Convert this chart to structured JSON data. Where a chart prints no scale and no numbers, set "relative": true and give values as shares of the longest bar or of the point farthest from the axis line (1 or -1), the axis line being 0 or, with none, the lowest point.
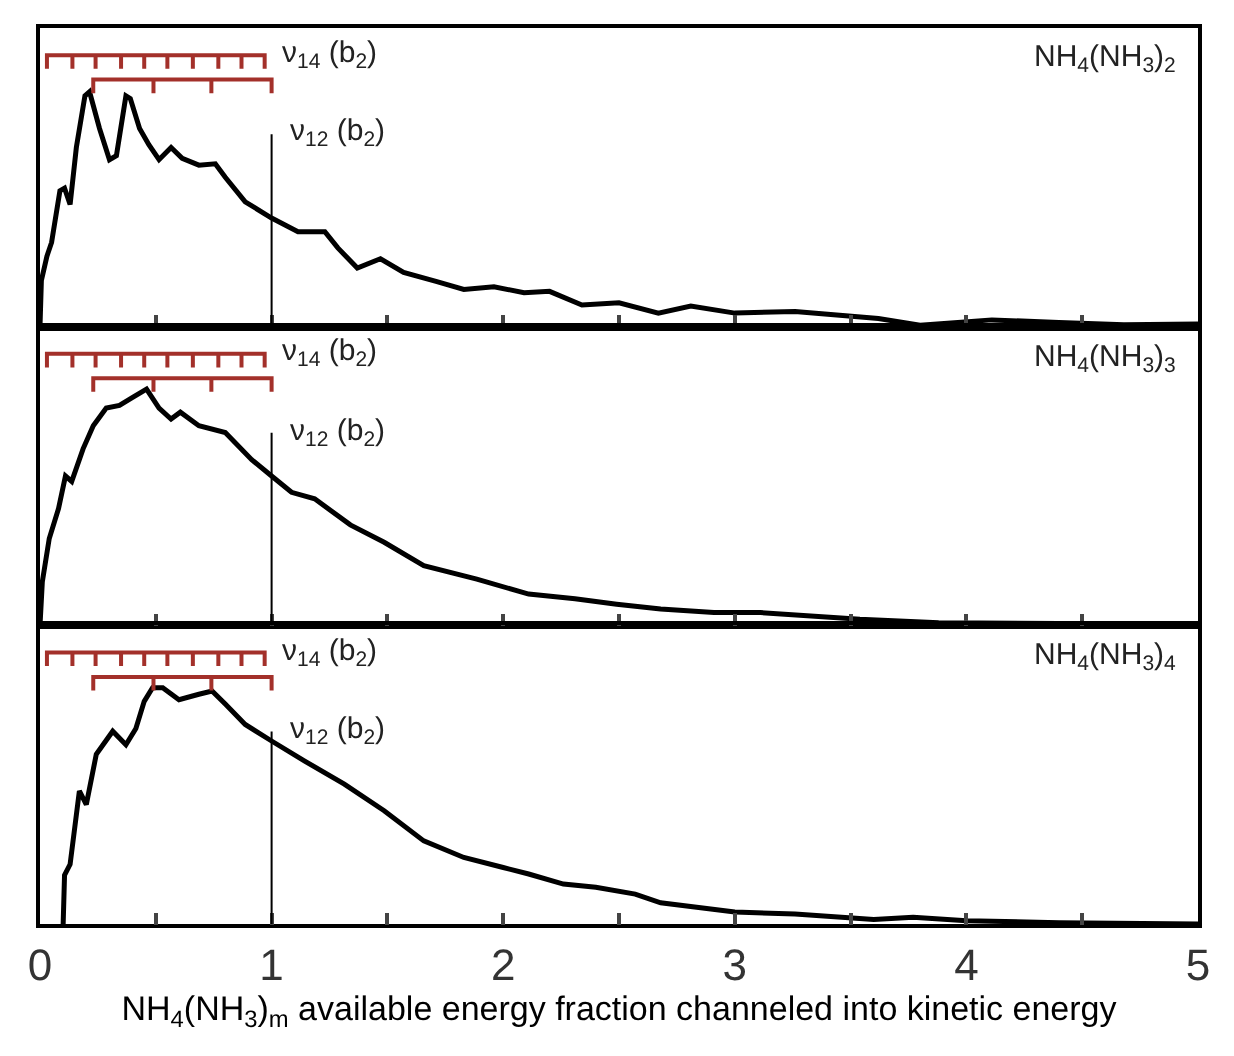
{
  "chart_data": [
    {
      "type": "line",
      "relative": true,
      "xlim": [
        0,
        5
      ],
      "xticks": [
        0,
        {
          "value": 0.5,
          "label": null
        },
        1,
        {
          "value": 1.5,
          "label": null
        },
        2,
        {
          "value": 2.5,
          "label": null
        },
        3,
        {
          "value": 3.5,
          "label": null
        },
        4,
        {
          "value": 4.5,
          "label": null
        },
        5
      ],
      "tick_labels": false,
      "grid": false,
      "marker": "none",
      "line_style": "solid",
      "series": [
        {
          "color": "#000000",
          "x": [
            0,
            0.006,
            0.03,
            0.05,
            0.086,
            0.106,
            0.13,
            0.157,
            0.194,
            0.214,
            0.257,
            0.3,
            0.33,
            0.371,
            0.39,
            0.43,
            0.47,
            0.514,
            0.566,
            0.614,
            0.686,
            0.757,
            0.8,
            0.886,
            1.0,
            1.114,
            1.23,
            1.286,
            1.37,
            1.47,
            1.57,
            1.71,
            1.83,
            1.96,
            2.09,
            2.2,
            2.34,
            2.5,
            2.67,
            2.81,
            3.0,
            3.26,
            3.62,
            3.8,
            4.11,
            4.4,
            4.68,
            5.0
          ],
          "values": [
            0,
            0.17,
            0.26,
            0.31,
            0.5,
            0.51,
            0.45,
            0.66,
            0.85,
            0.865,
            0.73,
            0.615,
            0.63,
            0.85,
            0.84,
            0.73,
            0.67,
            0.615,
            0.66,
            0.62,
            0.595,
            0.6,
            0.55,
            0.46,
            0.4,
            0.35,
            0.35,
            0.29,
            0.216,
            0.25,
            0.2,
            0.167,
            0.137,
            0.147,
            0.125,
            0.13,
            0.08,
            0.088,
            0.05,
            0.076,
            0.05,
            0.056,
            0.03,
            0.005,
            0.025,
            0.015,
            0.007,
            0.01
          ]
        },
        {
          "color": "#a3302a",
          "x": [
            0.03,
            0.03,
            0.14,
            0.14,
            0.14,
            0.24,
            0.24,
            0.24,
            0.35,
            0.35,
            0.35,
            0.45,
            0.45,
            0.45,
            0.55,
            0.55,
            0.55,
            0.66,
            0.66,
            0.66,
            0.77,
            0.77,
            0.77,
            0.87,
            0.87,
            0.87,
            0.97,
            0.97
          ],
          "values": [
            0.95,
            1,
            1,
            0.95,
            1,
            1,
            0.95,
            1,
            1,
            0.95,
            1,
            1,
            0.95,
            1,
            1,
            0.95,
            1,
            1,
            0.95,
            1,
            1,
            0.95,
            1,
            1,
            0.95,
            1,
            1,
            0.95
          ]
        },
        {
          "color": "#a3302a",
          "x": [
            0.23,
            0.23,
            0.49,
            0.49,
            0.49,
            0.74,
            0.74,
            0.74,
            1.0,
            1.0
          ],
          "values": [
            0.86,
            0.91,
            0.91,
            0.86,
            0.91,
            0.91,
            0.86,
            0.91,
            0.91,
            0.86
          ]
        }
      ],
      "ref_lines": [
        {
          "axis": "x",
          "value": 1
        }
      ],
      "annotations": [
        "NH$_{4}$(NH$_{3}$)$_{2}$",
        "ν$_{14}$ (b$_{2}$)",
        "ν$_{12}$ (b$_{2}$)"
      ]
    },
    {
      "type": "line",
      "relative": true,
      "xlim": [
        0,
        5
      ],
      "xticks": [
        0,
        {
          "value": 0.5,
          "label": null
        },
        1,
        {
          "value": 1.5,
          "label": null
        },
        2,
        {
          "value": 2.5,
          "label": null
        },
        3,
        {
          "value": 3.5,
          "label": null
        },
        4,
        {
          "value": 4.5,
          "label": null
        },
        5
      ],
      "tick_labels": false,
      "grid": false,
      "marker": "none",
      "line_style": "solid",
      "series": [
        {
          "color": "#000000",
          "x": [
            0,
            0.01,
            0.04,
            0.08,
            0.11,
            0.137,
            0.186,
            0.23,
            0.286,
            0.343,
            0.4,
            0.46,
            0.514,
            0.566,
            0.606,
            0.686,
            0.8,
            0.914,
            1.0,
            1.086,
            1.186,
            1.34,
            1.486,
            1.657,
            1.886,
            2.11,
            2.31,
            2.49,
            2.68,
            2.91,
            3.11,
            3.54,
            3.88,
            4.4,
            5.0
          ],
          "values": [
            0,
            0.16,
            0.32,
            0.43,
            0.55,
            0.53,
            0.65,
            0.735,
            0.8,
            0.81,
            0.84,
            0.87,
            0.8,
            0.76,
            0.785,
            0.735,
            0.71,
            0.61,
            0.55,
            0.49,
            0.466,
            0.37,
            0.306,
            0.22,
            0.17,
            0.115,
            0.098,
            0.078,
            0.06,
            0.047,
            0.047,
            0.022,
            0.01,
            0.007,
            0.002
          ]
        },
        {
          "color": "#a3302a",
          "x": [
            0.03,
            0.03,
            0.14,
            0.14,
            0.14,
            0.24,
            0.24,
            0.24,
            0.35,
            0.35,
            0.35,
            0.45,
            0.45,
            0.45,
            0.55,
            0.55,
            0.55,
            0.66,
            0.66,
            0.66,
            0.77,
            0.77,
            0.77,
            0.87,
            0.87,
            0.87,
            0.97,
            0.97
          ],
          "values": [
            0.95,
            1,
            1,
            0.95,
            1,
            1,
            0.95,
            1,
            1,
            0.95,
            1,
            1,
            0.95,
            1,
            1,
            0.95,
            1,
            1,
            0.95,
            1,
            1,
            0.95,
            1,
            1,
            0.95,
            1,
            1,
            0.95
          ]
        },
        {
          "color": "#a3302a",
          "x": [
            0.23,
            0.23,
            0.49,
            0.49,
            0.49,
            0.74,
            0.74,
            0.74,
            1.0,
            1.0
          ],
          "values": [
            0.86,
            0.91,
            0.91,
            0.86,
            0.91,
            0.91,
            0.86,
            0.91,
            0.91,
            0.86
          ]
        }
      ],
      "ref_lines": [
        {
          "axis": "x",
          "value": 1
        }
      ],
      "annotations": [
        "NH$_{4}$(NH$_{3}$)$_{3}$",
        "ν$_{14}$ (b$_{2}$)",
        "ν$_{12}$ (b$_{2}$)"
      ]
    },
    {
      "type": "line",
      "relative": true,
      "xlim": [
        0,
        5
      ],
      "xticks": [
        0,
        {
          "value": 0.5,
          "label": null
        },
        1,
        {
          "value": 1.5,
          "label": null
        },
        2,
        {
          "value": 2.5,
          "label": null
        },
        3,
        {
          "value": 3.5,
          "label": null
        },
        4,
        {
          "value": 4.5,
          "label": null
        },
        5
      ],
      "tick_labels": "x",
      "grid": false,
      "marker": "none",
      "line_style": "solid",
      "xlabel": "NH$_{4}$(NH$_{3}$)$_{m}$ available energy fraction channeled into kinetic energy",
      "series": [
        {
          "color": "#000000",
          "x": [
            0.1,
            0.106,
            0.13,
            0.17,
            0.2,
            0.243,
            0.314,
            0.371,
            0.414,
            0.45,
            0.486,
            0.53,
            0.6,
            0.686,
            0.743,
            0.8,
            0.886,
            1.0,
            1.143,
            1.314,
            1.486,
            1.657,
            1.83,
            2.0,
            2.11,
            2.26,
            2.4,
            2.57,
            2.68,
            3.0,
            3.26,
            3.6,
            3.77,
            4.0,
            4.4,
            5.0
          ],
          "values": [
            0,
            0.18,
            0.22,
            0.49,
            0.44,
            0.625,
            0.71,
            0.66,
            0.72,
            0.82,
            0.87,
            0.87,
            0.826,
            0.846,
            0.858,
            0.81,
            0.735,
            0.674,
            0.6,
            0.515,
            0.417,
            0.306,
            0.245,
            0.208,
            0.184,
            0.147,
            0.135,
            0.11,
            0.078,
            0.044,
            0.037,
            0.017,
            0.025,
            0.012,
            0.005,
            0
          ]
        },
        {
          "color": "#a3302a",
          "x": [
            0.03,
            0.03,
            0.14,
            0.14,
            0.14,
            0.24,
            0.24,
            0.24,
            0.35,
            0.35,
            0.35,
            0.45,
            0.45,
            0.45,
            0.55,
            0.55,
            0.55,
            0.66,
            0.66,
            0.66,
            0.77,
            0.77,
            0.77,
            0.87,
            0.87,
            0.87,
            0.97,
            0.97
          ],
          "values": [
            0.95,
            1,
            1,
            0.95,
            1,
            1,
            0.95,
            1,
            1,
            0.95,
            1,
            1,
            0.95,
            1,
            1,
            0.95,
            1,
            1,
            0.95,
            1,
            1,
            0.95,
            1,
            1,
            0.95,
            1,
            1,
            0.95
          ]
        },
        {
          "color": "#a3302a",
          "x": [
            0.23,
            0.23,
            0.49,
            0.49,
            0.49,
            0.74,
            0.74,
            0.74,
            1.0,
            1.0
          ],
          "values": [
            0.86,
            0.91,
            0.91,
            0.86,
            0.91,
            0.91,
            0.86,
            0.91,
            0.91,
            0.86
          ]
        }
      ],
      "ref_lines": [
        {
          "axis": "x",
          "value": 1
        }
      ],
      "annotations": [
        "NH$_{4}$(NH$_{3}$)$_{4}$",
        "ν$_{14}$ (b$_{2}$)",
        "ν$_{12}$ (b$_{2}$)"
      ]
    }
  ]
}
